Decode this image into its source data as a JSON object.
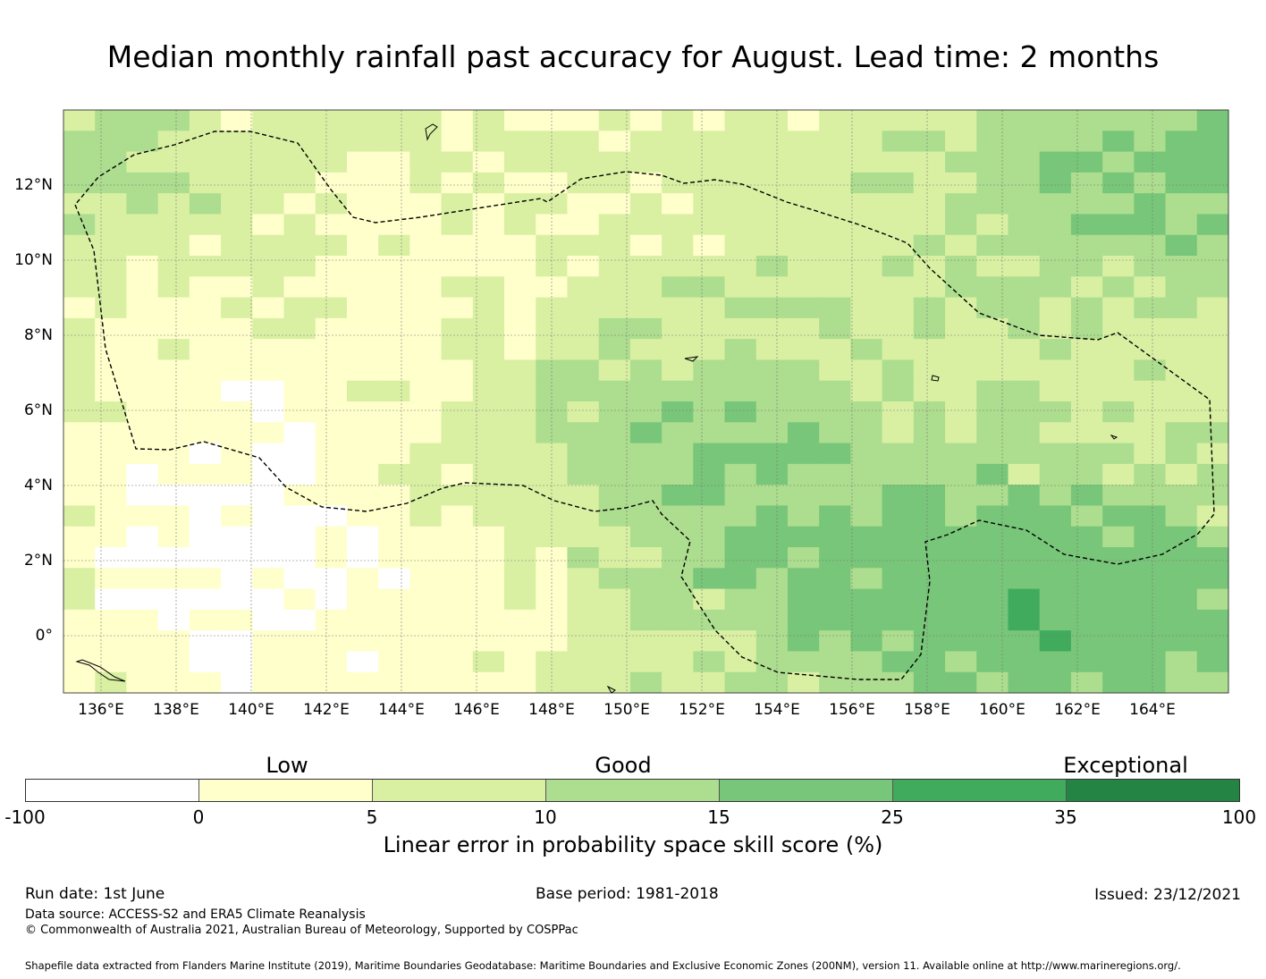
{
  "title": "Median monthly rainfall past accuracy for August. Lead time: 2 months",
  "map": {
    "lon_labels": [
      "136°E",
      "138°E",
      "140°E",
      "142°E",
      "144°E",
      "146°E",
      "148°E",
      "150°E",
      "152°E",
      "154°E",
      "156°E",
      "158°E",
      "160°E",
      "162°E",
      "164°E"
    ],
    "lat_labels": [
      "12°N",
      "10°N",
      "8°N",
      "6°N",
      "4°N",
      "2°N",
      "0°"
    ],
    "boundary_line": "dashed",
    "grid": true
  },
  "colorbar": {
    "ticks": [
      "-100",
      "0",
      "5",
      "10",
      "15",
      "25",
      "35",
      "100"
    ],
    "colors": [
      "#ffffff",
      "#ffffcc",
      "#d9f0a3",
      "#addd8e",
      "#78c679",
      "#41ab5d",
      "#238443"
    ],
    "categories": [
      "Low",
      "Good",
      "Exceptional"
    ],
    "label": "Linear error in probability space skill score (%)"
  },
  "footer": {
    "run_date": "Run date: 1st June",
    "base_period": "Base period: 1981-2018",
    "issued": "Issued: 23/12/2021",
    "data_source": "Data source: ACCESS-S2 and ERA5 Climate Reanalysis",
    "copyright": "© Commonwealth of Australia 2021, Australian Bureau of Meteorology, Supported by COSPPac",
    "shapefile": "Shapefile data extracted from Flanders Marine Institute (2019), Maritime Boundaries Geodatabase: Maritime Boundaries and Exclusive Economic Zones (200NM), version 11. Available online at http://www.marineregions.org/."
  }
}
